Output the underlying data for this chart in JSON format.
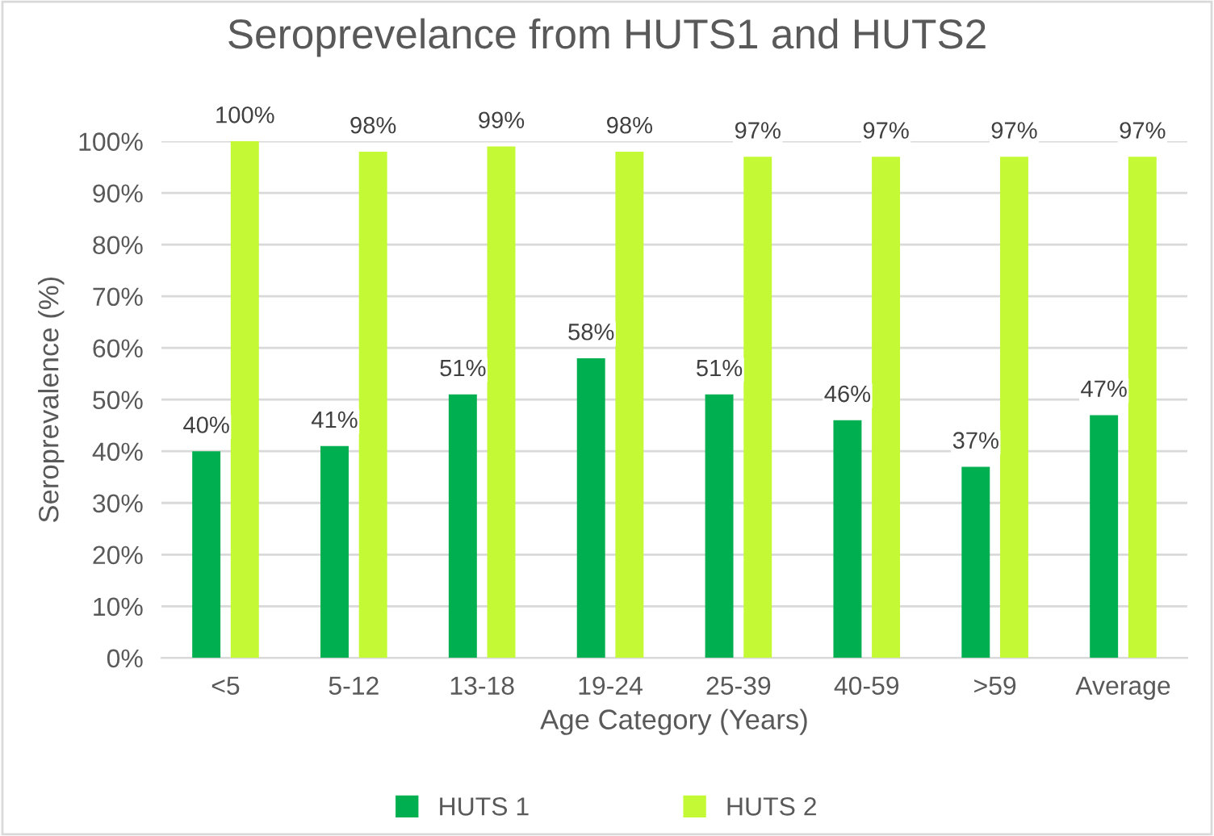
{
  "chart_data": {
    "type": "bar",
    "title": "Seroprevelance from HUTS1 and HUTS2",
    "xlabel": "Age Category (Years)",
    "ylabel": "Seroprevalence (%)",
    "categories": [
      "<5",
      "5-12",
      "13-18",
      "19-24",
      "25-39",
      "40-59",
      ">59",
      "Average"
    ],
    "series": [
      {
        "name": "HUTS 1",
        "color": "#00b050",
        "values": [
          40,
          41,
          51,
          58,
          51,
          46,
          37,
          47
        ],
        "value_labels": [
          "40%",
          "41%",
          "51%",
          "58%",
          "51%",
          "46%",
          "37%",
          "47%"
        ]
      },
      {
        "name": "HUTS 2",
        "color": "#c4f935",
        "values": [
          100,
          98,
          99,
          98,
          97,
          97,
          97,
          97
        ],
        "value_labels": [
          "100%",
          "98%",
          "99%",
          "98%",
          "97%",
          "97%",
          "97%",
          "97%"
        ]
      }
    ],
    "ylim": [
      0,
      100
    ],
    "yticks": [
      {
        "value": 0,
        "label": "0%"
      },
      {
        "value": 10,
        "label": "10%"
      },
      {
        "value": 20,
        "label": "20%"
      },
      {
        "value": 30,
        "label": "30%"
      },
      {
        "value": 40,
        "label": "40%"
      },
      {
        "value": 50,
        "label": "50%"
      },
      {
        "value": 60,
        "label": "60%"
      },
      {
        "value": 70,
        "label": "70%"
      },
      {
        "value": 80,
        "label": "80%"
      },
      {
        "value": 90,
        "label": "90%"
      },
      {
        "value": 100,
        "label": "100%"
      }
    ],
    "grid": "y",
    "legend": "bottom"
  }
}
